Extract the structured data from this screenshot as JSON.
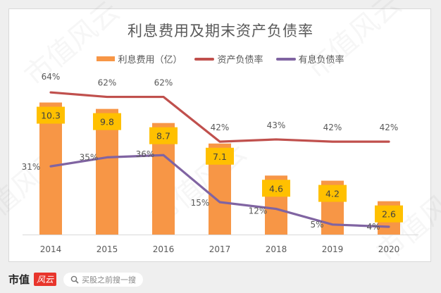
{
  "chart_data": {
    "type": "bar+line",
    "title": "利息费用及期末资产负债率",
    "categories": [
      "2014",
      "2015",
      "2016",
      "2017",
      "2018",
      "2019",
      "2020"
    ],
    "series": [
      {
        "name": "利息费用（亿）",
        "kind": "bar",
        "color": "#f79646",
        "values": [
          10.3,
          9.8,
          8.7,
          7.1,
          4.6,
          4.2,
          2.6
        ],
        "labels": [
          "10.3",
          "9.8",
          "8.7",
          "7.1",
          "4.6",
          "4.2",
          "2.6"
        ]
      },
      {
        "name": "资产负债率",
        "kind": "line",
        "color": "#c0504d",
        "values": [
          64,
          62,
          62,
          42,
          43,
          42,
          42
        ],
        "labels": [
          "64%",
          "62%",
          "62%",
          "42%",
          "43%",
          "42%",
          "42%"
        ]
      },
      {
        "name": "有息负债率",
        "kind": "line",
        "color": "#8064a2",
        "values": [
          31,
          35,
          36,
          15,
          12,
          5,
          4
        ],
        "labels": [
          "31%",
          "35%",
          "36%",
          "15%",
          "12%",
          "5%",
          "4%"
        ]
      }
    ],
    "bar_label_bg": "#ffc000",
    "legend_position": "top",
    "grid": false,
    "xlabel": "",
    "ylabel": ""
  },
  "legend": [
    {
      "label": "利息费用（亿）",
      "color": "#f79646",
      "kind": "bar"
    },
    {
      "label": "资产负债率",
      "color": "#c0504d",
      "kind": "line"
    },
    {
      "label": "有息负债率",
      "color": "#8064a2",
      "kind": "line"
    }
  ],
  "footer": {
    "brand": "市值",
    "brand_badge": "风云",
    "search_placeholder": "买股之前搜一搜"
  },
  "watermark": "市值风云"
}
